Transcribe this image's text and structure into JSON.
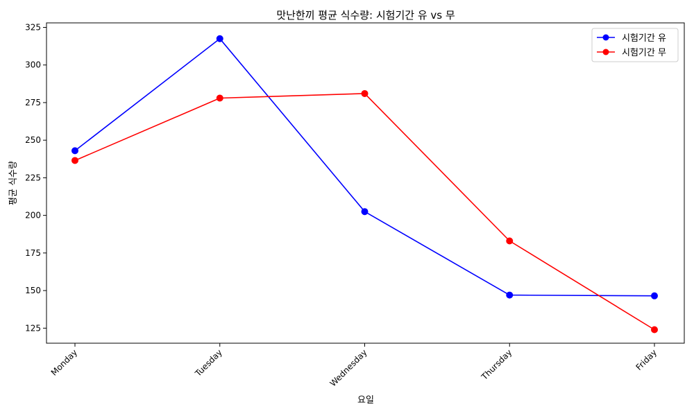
{
  "chart_data": {
    "type": "line",
    "title": "맛난한끼 평균 식수량: 시험기간 유 vs 무",
    "xlabel": "요일",
    "ylabel": "평균 식수량",
    "categories": [
      "Monday",
      "Tuesday",
      "Wednesday",
      "Thursday",
      "Friday"
    ],
    "y_ticks": [
      "125",
      "150",
      "175",
      "200",
      "225",
      "250",
      "275",
      "300",
      "325"
    ],
    "ylim": [
      115,
      328
    ],
    "grid": false,
    "legend_position": "top-right",
    "series": [
      {
        "name": "시험기간 유",
        "color": "#0000ff",
        "marker": "circle",
        "values": [
          243,
          317.5,
          202.5,
          147,
          146.5
        ]
      },
      {
        "name": "시험기간 무",
        "color": "#ff0000",
        "marker": "circle",
        "values": [
          236.5,
          278,
          281,
          183,
          124
        ]
      }
    ]
  }
}
